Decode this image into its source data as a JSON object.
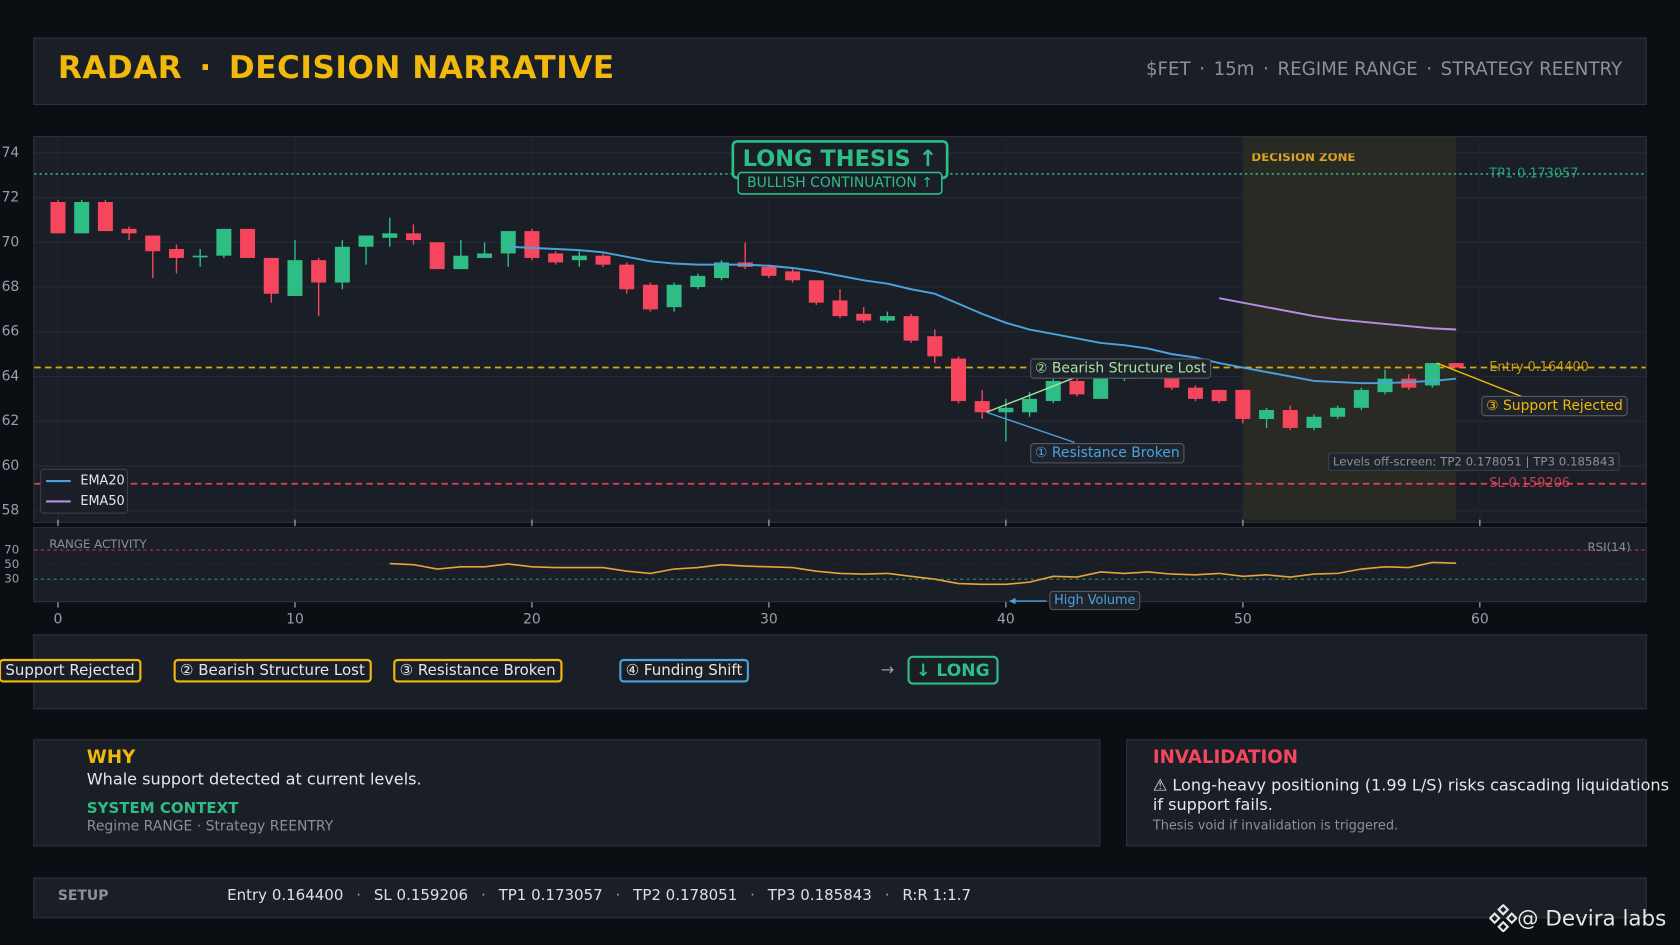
{
  "header": {
    "title": "RADAR",
    "separator": "·",
    "subtitle": "DECISION NARRATIVE",
    "meta": [
      "$FET",
      "15m",
      "REGIME RANGE",
      "STRATEGY REENTRY"
    ]
  },
  "chart_data": {
    "type": "candlestick",
    "x": [
      0,
      1,
      2,
      3,
      4,
      5,
      6,
      7,
      8,
      9,
      10,
      11,
      12,
      13,
      14,
      15,
      16,
      17,
      18,
      19,
      20,
      21,
      22,
      23,
      24,
      25,
      26,
      27,
      28,
      29,
      30,
      31,
      32,
      33,
      34,
      35,
      36,
      37,
      38,
      39,
      40,
      41,
      42,
      43,
      44,
      45,
      46,
      47,
      48,
      49,
      50,
      51,
      52,
      53,
      54,
      55,
      56,
      57,
      58,
      59
    ],
    "open": [
      71.8,
      70.4,
      71.8,
      70.6,
      70.3,
      69.7,
      69.4,
      69.4,
      70.6,
      69.3,
      67.6,
      69.2,
      68.2,
      69.8,
      70.2,
      70.4,
      70.0,
      68.8,
      69.3,
      69.5,
      70.5,
      69.5,
      69.2,
      69.4,
      69.0,
      68.1,
      67.1,
      68.0,
      68.4,
      69.1,
      68.9,
      68.7,
      68.3,
      67.4,
      66.8,
      66.5,
      66.7,
      65.8,
      64.8,
      62.9,
      62.4,
      62.4,
      62.9,
      63.8,
      63.0,
      63.9,
      64.2,
      64.0,
      63.5,
      63.4,
      63.4,
      62.1,
      62.5,
      61.7,
      62.2,
      62.6,
      63.3,
      63.9,
      63.6,
      64.6
    ],
    "high": [
      71.9,
      71.9,
      71.9,
      70.7,
      70.3,
      69.9,
      69.7,
      70.6,
      70.6,
      69.3,
      70.1,
      69.3,
      70.1,
      70.3,
      71.1,
      70.8,
      70.0,
      70.1,
      70.0,
      70.5,
      70.6,
      69.6,
      69.6,
      69.5,
      69.1,
      68.2,
      68.2,
      68.6,
      69.2,
      70.0,
      69.0,
      68.8,
      68.3,
      67.9,
      67.1,
      66.9,
      66.8,
      66.1,
      64.9,
      63.4,
      63.0,
      63.3,
      64.0,
      64.0,
      64.1,
      64.3,
      64.3,
      64.1,
      63.6,
      63.4,
      63.4,
      62.6,
      62.7,
      62.3,
      62.7,
      63.5,
      64.3,
      64.1,
      64.6,
      64.6
    ],
    "low": [
      70.4,
      70.4,
      70.5,
      70.1,
      68.4,
      68.6,
      68.9,
      69.3,
      69.3,
      67.3,
      67.6,
      66.7,
      67.9,
      69.0,
      69.8,
      69.9,
      68.8,
      68.8,
      69.3,
      68.9,
      69.2,
      69.0,
      68.9,
      68.9,
      67.7,
      66.9,
      66.9,
      67.9,
      68.3,
      68.8,
      68.4,
      68.2,
      67.2,
      66.6,
      66.4,
      66.4,
      65.5,
      64.6,
      62.8,
      62.1,
      61.1,
      62.2,
      62.8,
      63.1,
      63.0,
      63.8,
      63.9,
      63.4,
      62.9,
      62.8,
      61.9,
      61.7,
      61.6,
      61.6,
      62.1,
      62.5,
      63.2,
      63.4,
      63.5,
      64.4
    ],
    "close": [
      70.4,
      71.8,
      70.5,
      70.4,
      69.6,
      69.3,
      69.4,
      70.6,
      69.3,
      67.7,
      69.2,
      68.2,
      69.8,
      70.3,
      70.4,
      70.1,
      68.8,
      69.4,
      69.5,
      70.5,
      69.3,
      69.1,
      69.4,
      69.0,
      67.9,
      67.0,
      68.1,
      68.5,
      69.1,
      68.9,
      68.5,
      68.3,
      67.3,
      66.7,
      66.5,
      66.7,
      65.6,
      64.9,
      62.9,
      62.4,
      62.6,
      63.0,
      63.8,
      63.2,
      64.0,
      64.1,
      64.0,
      63.5,
      63.0,
      62.9,
      62.1,
      62.5,
      61.7,
      62.2,
      62.6,
      63.4,
      63.9,
      63.5,
      64.6,
      64.4
    ],
    "up_color": "#2ebd85",
    "down_color": "#f6465d",
    "xlim": [
      -1,
      67
    ],
    "xticks": [
      0,
      10,
      20,
      30,
      40,
      50,
      60
    ],
    "ylim": [
      57.6,
      74.7
    ],
    "yticks": [
      58,
      60,
      62,
      64,
      66,
      68,
      70,
      72,
      74
    ],
    "grid": true,
    "legend": "lower left",
    "series": [
      {
        "name": "EMA20",
        "color": "#4aa3df",
        "values": [
          null,
          null,
          null,
          null,
          null,
          null,
          null,
          null,
          null,
          null,
          null,
          null,
          null,
          null,
          null,
          null,
          null,
          null,
          null,
          69.8,
          69.75,
          69.7,
          69.65,
          69.55,
          69.35,
          69.15,
          69.05,
          69.0,
          69.0,
          69.0,
          68.95,
          68.85,
          68.7,
          68.5,
          68.3,
          68.15,
          67.9,
          67.7,
          67.25,
          66.8,
          66.4,
          66.1,
          65.9,
          65.7,
          65.5,
          65.4,
          65.25,
          65.0,
          64.85,
          64.6,
          64.4,
          64.2,
          64.0,
          63.8,
          63.75,
          63.7,
          63.7,
          63.75,
          63.8,
          63.9
        ]
      },
      {
        "name": "EMA50",
        "color": "#b48ee8",
        "values": [
          null,
          null,
          null,
          null,
          null,
          null,
          null,
          null,
          null,
          null,
          null,
          null,
          null,
          null,
          null,
          null,
          null,
          null,
          null,
          null,
          null,
          null,
          null,
          null,
          null,
          null,
          null,
          null,
          null,
          null,
          null,
          null,
          null,
          null,
          null,
          null,
          null,
          null,
          null,
          null,
          null,
          null,
          null,
          null,
          null,
          null,
          null,
          null,
          null,
          67.5,
          67.3,
          67.1,
          66.9,
          66.7,
          66.55,
          66.45,
          66.35,
          66.25,
          66.15,
          66.1
        ]
      }
    ],
    "levels": [
      {
        "label": "TP1 0.173057",
        "value": 73.057,
        "color": "#2ebd85",
        "style": "dotted"
      },
      {
        "label": "Entry 0.164400",
        "value": 64.4,
        "color": "#f0b90b",
        "style": "dashed"
      },
      {
        "label": "SL 0.159206",
        "value": 59.206,
        "color": "#f6465d",
        "style": "dashed"
      }
    ],
    "decision_zone": {
      "label": "DECISION ZONE",
      "x": [
        50,
        59
      ]
    },
    "thesis": {
      "title": "LONG THESIS ↑",
      "subtitle": "BULLISH CONTINUATION ↑"
    },
    "annotations": [
      {
        "text": "② Bearish Structure Lost",
        "x": 39,
        "y": 62.4,
        "color": "#a6e3a1"
      },
      {
        "text": "① Resistance Broken",
        "x": 39,
        "y": 62.4,
        "color": "#4aa3df"
      },
      {
        "text": "③ Support Rejected",
        "x": 58,
        "y": 64.6,
        "color": "#f0b90b"
      }
    ],
    "note": "Levels off-screen: TP2 0.178051 | TP3 0.185843",
    "rsi": {
      "title": "RANGE ACTIVITY",
      "name": "RSI(14)",
      "color": "#e8a33d",
      "ylim": [
        0,
        100
      ],
      "yticks": [
        30,
        50,
        70
      ],
      "tick_colors": [
        "#2ebd85",
        "#2a2f3a",
        "#f6465d"
      ],
      "values": [
        null,
        null,
        null,
        null,
        null,
        null,
        null,
        null,
        null,
        null,
        null,
        null,
        null,
        null,
        51.5,
        50,
        44,
        47,
        47,
        51,
        47,
        46,
        46,
        46,
        41,
        38,
        44,
        46,
        50,
        48,
        47,
        46,
        41,
        38,
        37,
        38,
        34,
        30,
        24,
        23,
        23,
        26,
        34,
        33,
        40,
        38,
        40,
        37,
        36,
        38,
        34,
        36,
        33,
        37,
        38,
        44,
        47,
        46,
        53,
        52
      ],
      "annotation": {
        "text": "High Volume",
        "x": 40
      }
    }
  },
  "flow": {
    "steps": [
      {
        "text": "Support Rejected",
        "color": "#f0b90b"
      },
      {
        "text": "② Bearish Structure Lost",
        "color": "#f0b90b"
      },
      {
        "text": "③ Resistance Broken",
        "color": "#f0b90b"
      },
      {
        "text": "④ Funding Shift",
        "color": "#4aa3df"
      }
    ],
    "arrow": "→",
    "decision": "↓ LONG"
  },
  "why": {
    "title": "WHY",
    "text": "Whale support detected at current levels.",
    "context_title": "SYSTEM CONTEXT",
    "context": "Regime RANGE · Strategy REENTRY"
  },
  "invalidation": {
    "title": "INVALIDATION",
    "text": "⚠ Long-heavy positioning (1.99 L/S) risks cascading liquidations if support fails.",
    "note": "Thesis void if invalidation is triggered."
  },
  "setup": {
    "title": "SETUP",
    "separator": "·",
    "items": [
      "Entry 0.164400",
      "SL 0.159206",
      "TP1 0.173057",
      "TP2 0.178051",
      "TP3 0.185843",
      "R:R 1:1.7"
    ]
  },
  "watermark": "@ Devira labs"
}
